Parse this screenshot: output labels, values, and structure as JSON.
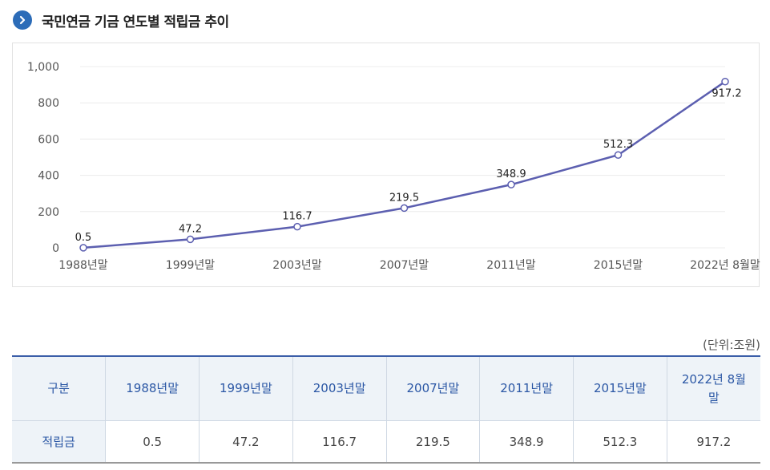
{
  "header": {
    "title": "국민연금 기금 연도별 적립금 추이",
    "icon": "chevron-right-icon",
    "accent": "#2c6cb8"
  },
  "chart_data": {
    "type": "line",
    "categories": [
      "1988년말",
      "1999년말",
      "2003년말",
      "2007년말",
      "2011년말",
      "2015년말",
      "2022년 8월말"
    ],
    "values": [
      0.5,
      47.2,
      116.7,
      219.5,
      348.9,
      512.3,
      917.2
    ],
    "value_labels": [
      "0.5",
      "47.2",
      "116.7",
      "219.5",
      "348.9",
      "512.3",
      "917.2"
    ],
    "ylim": [
      0,
      1000
    ],
    "yticks": [
      0,
      200,
      400,
      600,
      800,
      1000
    ],
    "ytick_labels": [
      "0",
      "200",
      "400",
      "600",
      "800",
      "1,000"
    ],
    "grid": true,
    "line_color": "#5c5fb0"
  },
  "table": {
    "unit": "(단위:조원)",
    "corner": "구분",
    "headers": [
      "1988년말",
      "1999년말",
      "2003년말",
      "2007년말",
      "2011년말",
      "2015년말",
      "2022년 8월말"
    ],
    "row_label": "적립금",
    "values": [
      "0.5",
      "47.2",
      "116.7",
      "219.5",
      "348.9",
      "512.3",
      "917.2"
    ]
  }
}
